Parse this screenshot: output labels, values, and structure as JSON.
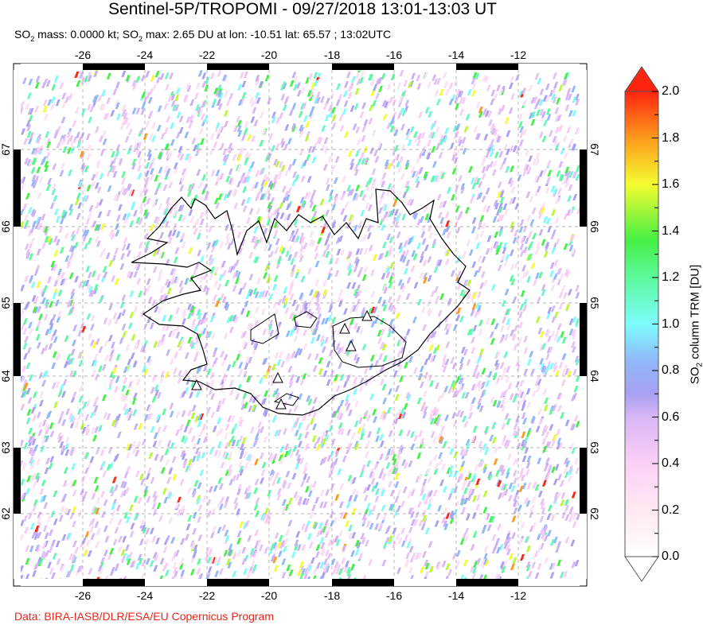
{
  "title": "Sentinel-5P/TROPOMI - 09/27/2018 13:01-13:03 UT",
  "subtitle": {
    "mass_prefix": "SO",
    "mass_sub": "2",
    "mass_text": " mass: 0.0000 kt; SO",
    "max_sub": "2",
    "max_text": " max: 2.65 DU at lon: -10.51 lat: 65.57 ; 13:02UTC"
  },
  "map": {
    "lon_ticks": [
      "-26",
      "-24",
      "-22",
      "-20",
      "-18",
      "-16",
      "-14",
      "-12"
    ],
    "lat_ticks": [
      "67",
      "66",
      "65",
      "64",
      "63",
      "62"
    ],
    "volcano_markers": 6
  },
  "colorbar": {
    "label_prefix": "SO",
    "label_sub": "2",
    "label_text": " column TRM [DU]",
    "ticks": [
      "0.0",
      "0.2",
      "0.4",
      "0.6",
      "0.8",
      "1.0",
      "1.2",
      "1.4",
      "1.6",
      "1.8",
      "2.0"
    ],
    "range": [
      0.0,
      2.0
    ],
    "colors": [
      "#ffffff",
      "#ffe0f0",
      "#f9c8f6",
      "#d8b4f4",
      "#a79ef4",
      "#8fb8fa",
      "#7dfcfc",
      "#5cfa9c",
      "#45f045",
      "#f2fc2c",
      "#fd9b1c",
      "#fd2410"
    ]
  },
  "credit": "Data: BIRA-IASB/DLR/ESA/EU Copernicus Program"
}
